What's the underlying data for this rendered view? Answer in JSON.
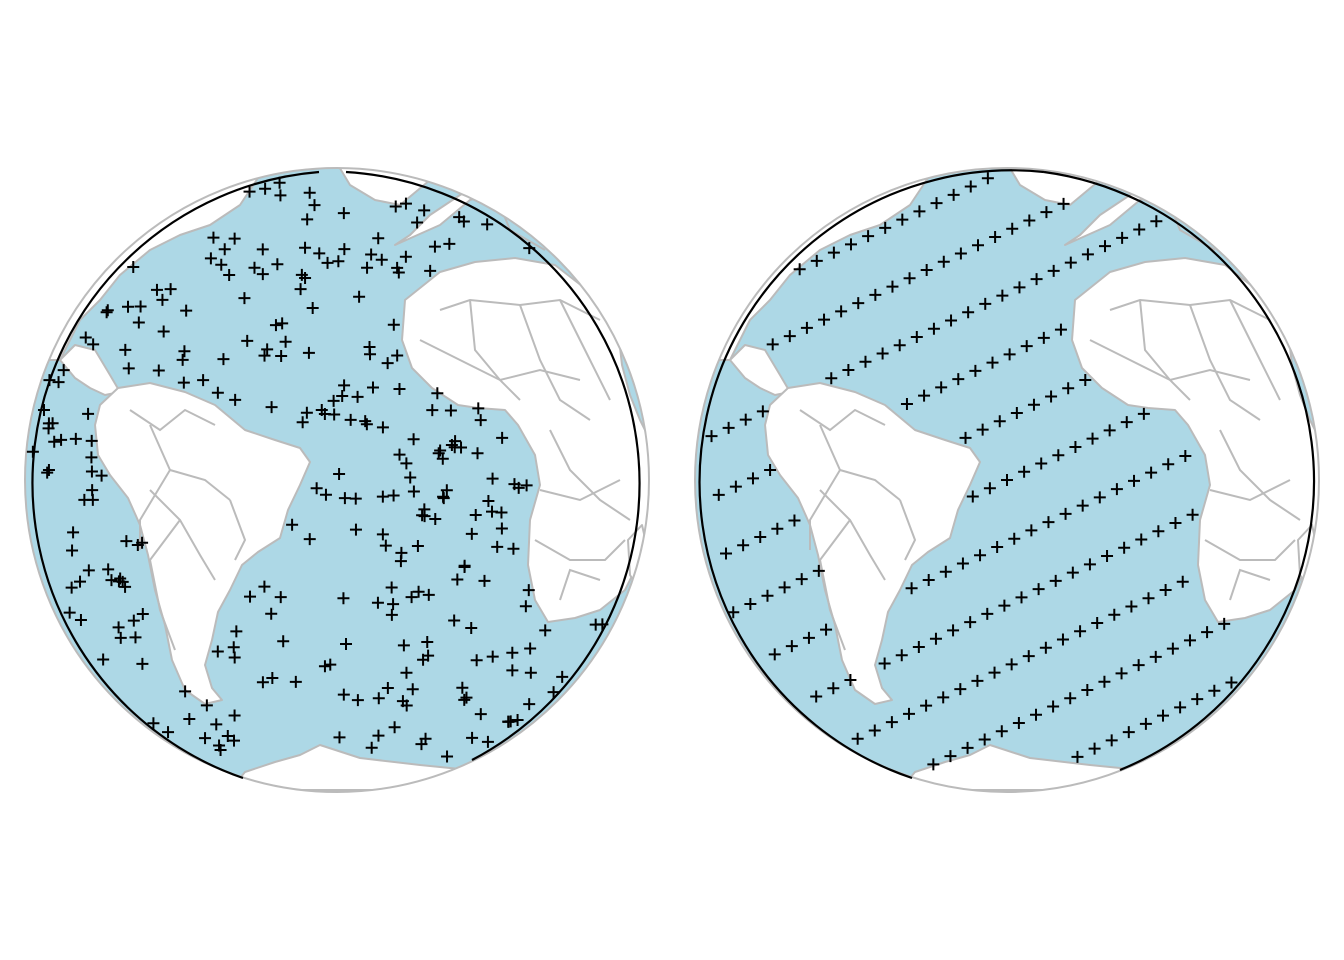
{
  "figure": {
    "panels": [
      {
        "id": "left",
        "sampling": "random",
        "seed": 7,
        "point_count": 280
      },
      {
        "id": "right",
        "sampling": "regular-grid",
        "point_count": 400
      }
    ]
  },
  "colors": {
    "ocean": "#add8e6",
    "land": "#ffffff",
    "borders": "#bbbbbb",
    "outline": "#000000",
    "markers": "#000000"
  },
  "icons": {
    "marker": "plus-marker-icon"
  }
}
